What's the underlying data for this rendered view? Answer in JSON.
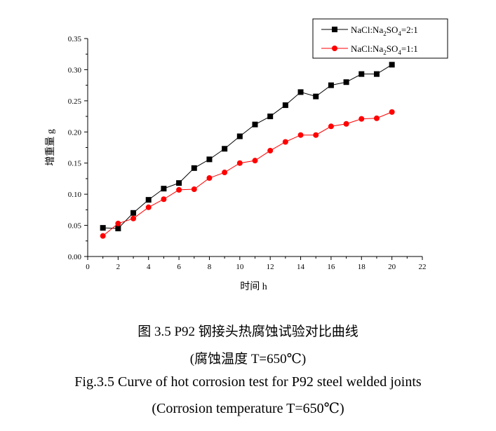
{
  "chart_data": {
    "type": "line",
    "xlabel": "时间 h",
    "ylabel": "增重量 g",
    "xlim": [
      0,
      22
    ],
    "ylim": [
      0,
      0.35
    ],
    "xticks": [
      "0",
      "2",
      "4",
      "6",
      "8",
      "10",
      "12",
      "14",
      "16",
      "18",
      "20",
      "22"
    ],
    "yticks": [
      "0.00",
      "0.05",
      "0.10",
      "0.15",
      "0.20",
      "0.25",
      "0.30",
      "0.35"
    ],
    "grid": false,
    "legend_position": "top-right",
    "series": [
      {
        "name": "NaCl:Na2SO4=2:1",
        "legend_parts": [
          "NaCl:Na",
          "2",
          "SO",
          "4",
          "=2:1"
        ],
        "color": "#000000",
        "marker": "square",
        "x": [
          1,
          2,
          3,
          4,
          5,
          6,
          7,
          8,
          9,
          10,
          11,
          12,
          13,
          14,
          15,
          16,
          17,
          18,
          19,
          20
        ],
        "values": [
          0.046,
          0.045,
          0.07,
          0.091,
          0.109,
          0.118,
          0.142,
          0.156,
          0.173,
          0.193,
          0.212,
          0.225,
          0.243,
          0.264,
          0.257,
          0.275,
          0.28,
          0.293,
          0.293,
          0.308
        ]
      },
      {
        "name": "NaCl:Na2SO4=1:1",
        "legend_parts": [
          "NaCl:Na",
          "2",
          "SO",
          "4",
          "=1:1"
        ],
        "color": "#ff0000",
        "marker": "circle",
        "x": [
          1,
          2,
          3,
          4,
          5,
          6,
          7,
          8,
          9,
          10,
          11,
          12,
          13,
          14,
          15,
          16,
          17,
          18,
          19,
          20
        ],
        "values": [
          0.033,
          0.053,
          0.061,
          0.079,
          0.092,
          0.107,
          0.108,
          0.126,
          0.135,
          0.15,
          0.154,
          0.17,
          0.184,
          0.195,
          0.195,
          0.209,
          0.213,
          0.221,
          0.222,
          0.232
        ]
      }
    ]
  },
  "captions": {
    "cn_title": "图 3.5 P92 钢接头热腐蚀试验对比曲线",
    "cn_sub": "(腐蚀温度 T=650℃)",
    "en_title": "Fig.3.5 Curve of hot corrosion test for P92 steel welded joints",
    "en_sub": "(Corrosion temperature T=650℃)"
  }
}
